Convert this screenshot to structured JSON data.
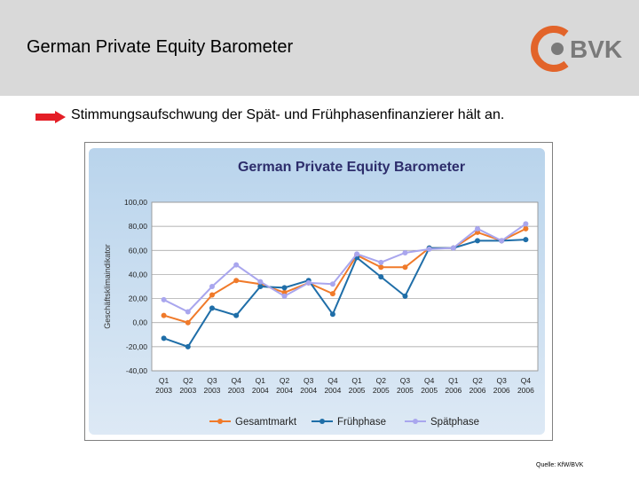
{
  "header": {
    "title": "German Private Equity Barometer",
    "logo_text": "BVK",
    "background": "#d9d9d9",
    "logo_color": "#e2642a"
  },
  "subtitle": {
    "text": "Stimmungsaufschwung der Spät- und Frühphasenfinanzierer hält an.",
    "arrow_icon": "red-arrow-icon",
    "arrow_color": "#e41e26"
  },
  "source": "Quelle: KfW/BVK",
  "chart_data": {
    "type": "line",
    "title": "German Private Equity Barometer",
    "ylabel": "Geschäftsklimaindikator",
    "xlabel": "",
    "ylim": [
      -40,
      100
    ],
    "yticks": [
      "100,00",
      "80,00",
      "60,00",
      "40,00",
      "20,00",
      "0,00",
      "-20,00",
      "-40,00"
    ],
    "grid": true,
    "legend_position": "bottom",
    "categories": [
      {
        "q": "Q1",
        "y": "2003"
      },
      {
        "q": "Q2",
        "y": "2003"
      },
      {
        "q": "Q3",
        "y": "2003"
      },
      {
        "q": "Q4",
        "y": "2003"
      },
      {
        "q": "Q1",
        "y": "2004"
      },
      {
        "q": "Q2",
        "y": "2004"
      },
      {
        "q": "Q3",
        "y": "2004"
      },
      {
        "q": "Q4",
        "y": "2004"
      },
      {
        "q": "Q1",
        "y": "2005"
      },
      {
        "q": "Q2",
        "y": "2005"
      },
      {
        "q": "Q3",
        "y": "2005"
      },
      {
        "q": "Q4",
        "y": "2005"
      },
      {
        "q": "Q1",
        "y": "2006"
      },
      {
        "q": "Q2",
        "y": "2006"
      },
      {
        "q": "Q3",
        "y": "2006"
      },
      {
        "q": "Q4",
        "y": "2006"
      }
    ],
    "series": [
      {
        "name": "Gesamtmarkt",
        "color": "#f07a2a",
        "values": [
          6,
          0,
          23,
          35,
          32,
          25,
          33,
          24,
          56,
          46,
          46,
          62,
          62,
          75,
          68,
          78
        ]
      },
      {
        "name": "Frühphase",
        "color": "#1f6ea8",
        "values": [
          -13,
          -20,
          12,
          6,
          30,
          29,
          35,
          7,
          54,
          38,
          22,
          62,
          62,
          68,
          68,
          69
        ]
      },
      {
        "name": "Spätphase",
        "color": "#a9a6ee",
        "values": [
          19,
          9,
          30,
          48,
          34,
          22,
          33,
          32,
          57,
          50,
          58,
          61,
          62,
          78,
          68,
          82
        ]
      }
    ]
  }
}
